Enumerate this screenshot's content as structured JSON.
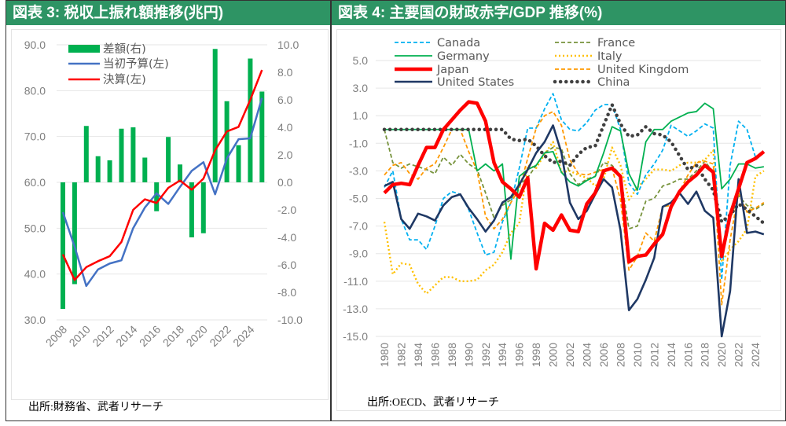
{
  "panel1": {
    "title": "図表 3: 税収上振れ額推移(兆円)",
    "source": "出所:財務省、武者リサーチ"
  },
  "panel2": {
    "title": "図表 4: 主要国の財政赤字/GDP 推移(%)",
    "source": "出所:OECD、武者リサーチ"
  },
  "chart_data": [
    {
      "type": "bar+line",
      "title": "税収上振れ額推移(兆円)",
      "x": [
        2008,
        2009,
        2010,
        2011,
        2012,
        2013,
        2014,
        2015,
        2016,
        2017,
        2018,
        2019,
        2020,
        2021,
        2022,
        2023,
        2024,
        2025
      ],
      "x_tick_labels": [
        "2008",
        "2010",
        "2012",
        "2014",
        "2016",
        "2018",
        "2020",
        "2022",
        "2024"
      ],
      "y_left": {
        "range": [
          30,
          90
        ],
        "ticks": [
          "30.0",
          "40.0",
          "50.0",
          "60.0",
          "70.0",
          "80.0",
          "90.0"
        ]
      },
      "y_right": {
        "range": [
          -10,
          10
        ],
        "ticks": [
          "-10.0",
          "-8.0",
          "-6.0",
          "-4.0",
          "-2.0",
          "0.0",
          "2.0",
          "4.0",
          "6.0",
          "8.0",
          "10.0"
        ]
      },
      "grid": true,
      "legend": "top-left",
      "series": [
        {
          "name": "差額(右)",
          "type": "bar",
          "axis": "right",
          "color": "#00b050",
          "values": [
            -9.2,
            -7.4,
            4.1,
            1.9,
            1.6,
            3.9,
            4.0,
            1.8,
            -2.1,
            3.3,
            1.3,
            -4.0,
            -3.7,
            9.7,
            5.9,
            2.7,
            9.0,
            6.6
          ]
        },
        {
          "name": "当初予算(左)",
          "type": "line",
          "axis": "left",
          "color": "#4472c4",
          "values": [
            53.5,
            46.0,
            37.4,
            41.0,
            42.3,
            43.0,
            50.0,
            54.5,
            57.6,
            55.3,
            59.0,
            62.5,
            64.4,
            57.4,
            65.2,
            69.4,
            69.6,
            78.4
          ]
        },
        {
          "name": "決算(左)",
          "type": "line",
          "axis": "left",
          "color": "#ff0000",
          "values": [
            44.3,
            38.7,
            41.5,
            42.8,
            43.9,
            47.0,
            54.0,
            56.3,
            55.5,
            58.8,
            60.4,
            58.4,
            60.8,
            67.0,
            71.1,
            72.1,
            78.0,
            84.5
          ]
        }
      ]
    },
    {
      "type": "line",
      "title": "主要国の財政赤字/GDP 推移(%)",
      "x": [
        1980,
        1981,
        1982,
        1983,
        1984,
        1985,
        1986,
        1987,
        1988,
        1989,
        1990,
        1991,
        1992,
        1993,
        1994,
        1995,
        1996,
        1997,
        1998,
        1999,
        2000,
        2001,
        2002,
        2003,
        2004,
        2005,
        2006,
        2007,
        2008,
        2009,
        2010,
        2011,
        2012,
        2013,
        2014,
        2015,
        2016,
        2017,
        2018,
        2019,
        2020,
        2021,
        2022,
        2023,
        2024,
        2025
      ],
      "x_tick_labels": [
        "1980",
        "1982",
        "1984",
        "1986",
        "1988",
        "1990",
        "1992",
        "1994",
        "1996",
        "1998",
        "2000",
        "2002",
        "2004",
        "2006",
        "2008",
        "2010",
        "2012",
        "2014",
        "2016",
        "2018",
        "2020",
        "2022",
        "2024"
      ],
      "y": {
        "range": [
          -15,
          5
        ],
        "ticks": [
          "5.0",
          "3.0",
          "1.0",
          "-1.0",
          "-3.0",
          "-5.0",
          "-7.0",
          "-9.0",
          "-11.0",
          "-13.0",
          "-15.0"
        ]
      },
      "grid": true,
      "legend": "top",
      "series": [
        {
          "name": "Canada",
          "color": "#00b0f0",
          "dash": "dashed",
          "values": [
            -4.2,
            -3.0,
            -6.5,
            -8.0,
            -8.0,
            -8.7,
            -7.0,
            -5.0,
            -4.5,
            -4.7,
            -5.8,
            -7.5,
            -9.1,
            -8.9,
            -6.7,
            -5.3,
            -2.8,
            0.1,
            0.1,
            1.5,
            2.6,
            0.7,
            0.0,
            -0.1,
            0.5,
            1.4,
            1.8,
            1.8,
            0.0,
            -3.9,
            -4.7,
            -3.3,
            -2.5,
            -1.5,
            0.3,
            -0.1,
            -0.5,
            -0.1,
            0.4,
            0.1,
            -10.9,
            -2.6,
            0.6,
            0.0,
            -2.0,
            -1.6
          ]
        },
        {
          "name": "France",
          "color": "#77933c",
          "dash": "dashed",
          "values": [
            0.0,
            -2.4,
            -2.8,
            -2.5,
            -2.7,
            -2.9,
            -3.2,
            -2.0,
            -2.6,
            -1.8,
            -2.5,
            -2.9,
            -4.6,
            -6.4,
            -5.5,
            -5.1,
            -4.0,
            -3.5,
            -2.6,
            -1.7,
            -1.3,
            -1.4,
            -3.2,
            -4.0,
            -3.6,
            -3.4,
            -2.4,
            -2.6,
            -3.3,
            -7.2,
            -7.0,
            -5.2,
            -5.0,
            -4.1,
            -3.9,
            -3.6,
            -3.6,
            -3.0,
            -2.3,
            -3.1,
            -9.0,
            -6.5,
            -4.8,
            -5.5,
            -5.8,
            -5.4
          ]
        },
        {
          "name": "Germany",
          "color": "#00b050",
          "dash": "solid",
          "values": [
            0.0,
            0.0,
            0.0,
            0.0,
            0.0,
            0.0,
            0.0,
            0.0,
            0.0,
            0.0,
            0.0,
            -3.0,
            -2.5,
            -3.0,
            -2.5,
            -9.4,
            -3.4,
            -2.9,
            -2.6,
            -1.7,
            -1.6,
            -3.1,
            -3.8,
            -4.1,
            -3.7,
            -3.4,
            -1.7,
            0.2,
            -0.1,
            -3.2,
            -4.4,
            -0.9,
            0.0,
            0.0,
            0.6,
            0.9,
            1.2,
            1.3,
            1.9,
            1.5,
            -4.3,
            -3.6,
            -2.5,
            -2.5,
            -2.8,
            -2.7
          ]
        },
        {
          "name": "Italy",
          "color": "#ffc000",
          "dash": "dotted",
          "values": [
            -6.7,
            -10.5,
            -9.7,
            -9.8,
            -11.2,
            -11.9,
            -11.3,
            -10.7,
            -10.7,
            -11.0,
            -11.0,
            -10.9,
            -10.2,
            -9.8,
            -8.9,
            -7.5,
            -6.8,
            -2.6,
            -2.8,
            -1.8,
            -0.9,
            -3.1,
            -3.0,
            -3.3,
            -3.5,
            -4.1,
            -3.6,
            -1.3,
            -2.6,
            -5.1,
            -4.2,
            -3.6,
            -2.9,
            -2.9,
            -3.0,
            -2.6,
            -2.4,
            -2.4,
            -2.2,
            -1.5,
            -9.6,
            -8.7,
            -8.1,
            -7.2,
            -3.4,
            -3.0
          ]
        },
        {
          "name": "Japan",
          "color": "#ff0000",
          "dash": "solid-thick",
          "values": [
            -4.6,
            -4.0,
            -3.9,
            -4.0,
            -2.6,
            -1.3,
            -1.3,
            0.0,
            0.7,
            1.4,
            2.0,
            1.9,
            0.6,
            -2.4,
            -3.8,
            -4.3,
            -4.9,
            -3.5,
            -10.1,
            -6.8,
            -7.3,
            -6.2,
            -7.3,
            -7.4,
            -5.4,
            -4.6,
            -3.0,
            -2.8,
            -3.4,
            -9.6,
            -9.2,
            -9.1,
            -8.3,
            -7.6,
            -5.6,
            -4.5,
            -3.8,
            -3.3,
            -2.6,
            -3.1,
            -9.2,
            -6.2,
            -4.3,
            -2.4,
            -2.1,
            -1.6
          ]
        },
        {
          "name": "United Kingdom",
          "color": "#ff9900",
          "dash": "dashed",
          "values": [
            -3.3,
            -2.6,
            -2.4,
            -3.2,
            -3.6,
            -2.8,
            -2.5,
            -1.3,
            0.0,
            0.0,
            -1.6,
            -3.0,
            -6.3,
            -7.2,
            -6.5,
            -5.3,
            -4.3,
            -2.1,
            0.1,
            1.0,
            1.3,
            0.3,
            -2.2,
            -3.2,
            -3.3,
            -3.1,
            -2.9,
            -2.8,
            -5.1,
            -10.2,
            -9.2,
            -7.5,
            -8.1,
            -5.6,
            -5.5,
            -4.5,
            -3.3,
            -2.4,
            -2.3,
            -2.5,
            -12.7,
            -8.0,
            -4.6,
            -6.0,
            -5.7,
            -5.3
          ]
        },
        {
          "name": "United States",
          "color": "#1f3864",
          "dash": "solid",
          "values": [
            -4.1,
            -3.8,
            -6.5,
            -7.2,
            -6.1,
            -6.3,
            -6.6,
            -5.5,
            -4.9,
            -4.7,
            -5.7,
            -6.5,
            -7.4,
            -6.6,
            -5.3,
            -4.9,
            -4.0,
            -2.9,
            -1.7,
            -0.9,
            0.3,
            -1.7,
            -5.3,
            -6.5,
            -5.9,
            -4.7,
            -3.6,
            -4.2,
            -7.3,
            -13.1,
            -12.3,
            -10.9,
            -9.3,
            -5.6,
            -5.3,
            -4.6,
            -5.4,
            -4.5,
            -5.9,
            -6.4,
            -15.0,
            -11.7,
            -3.6,
            -7.5,
            -7.4,
            -7.6
          ]
        },
        {
          "name": "China",
          "color": "#404040",
          "dash": "round-dotted",
          "values": [
            0.0,
            0.0,
            0.0,
            0.0,
            0.0,
            0.0,
            0.0,
            0.0,
            0.0,
            0.0,
            0.0,
            0.0,
            0.0,
            0.0,
            0.0,
            -0.7,
            -0.8,
            -0.7,
            -1.2,
            -1.9,
            -2.4,
            -2.3,
            -2.6,
            -1.8,
            -1.3,
            -1.2,
            0.3,
            1.8,
            0.4,
            -0.5,
            -0.4,
            0.2,
            -0.3,
            -0.4,
            -0.9,
            -1.9,
            -2.9,
            -2.6,
            -3.6,
            -4.4,
            -6.7,
            -6.2,
            -5.4,
            -5.8,
            -6.3,
            -6.8
          ]
        }
      ]
    }
  ]
}
